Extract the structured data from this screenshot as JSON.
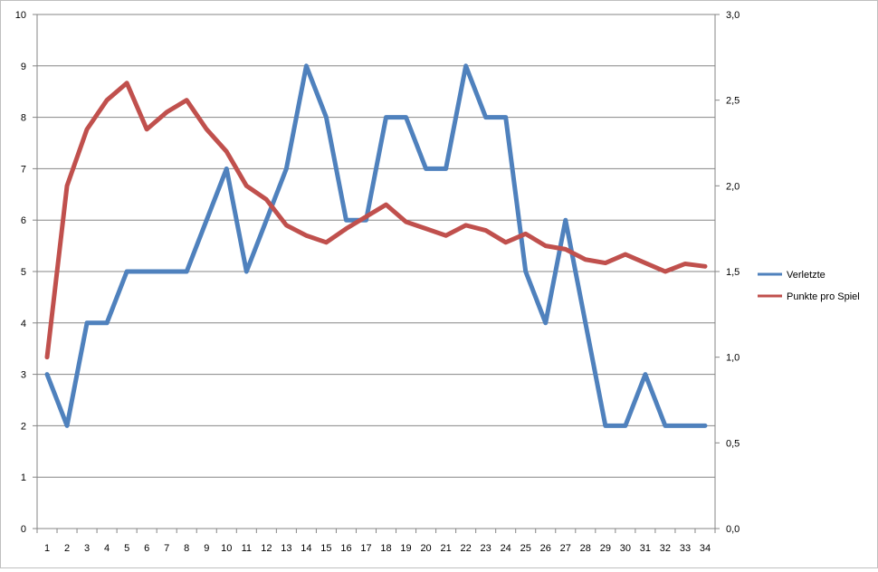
{
  "chart_data": {
    "type": "line",
    "title": "",
    "xlabel": "",
    "ylabel": "",
    "y2label": "",
    "categories": [
      "1",
      "2",
      "3",
      "4",
      "5",
      "6",
      "7",
      "8",
      "9",
      "10",
      "11",
      "12",
      "13",
      "14",
      "15",
      "16",
      "17",
      "18",
      "19",
      "20",
      "21",
      "22",
      "23",
      "24",
      "25",
      "26",
      "27",
      "28",
      "29",
      "30",
      "31",
      "32",
      "33",
      "34"
    ],
    "ylim": [
      0,
      10
    ],
    "yticks": [
      "0",
      "1",
      "2",
      "3",
      "4",
      "5",
      "6",
      "7",
      "8",
      "9",
      "10"
    ],
    "y2lim": [
      0,
      3
    ],
    "y2ticks": [
      "0,0",
      "0,5",
      "1,0",
      "1,5",
      "2,0",
      "2,5",
      "3,0"
    ],
    "grid": true,
    "legend_position": "right",
    "series": [
      {
        "name": "Verletzte",
        "axis": "left",
        "color": "#4f81bd",
        "values": [
          3,
          2,
          4,
          4,
          5,
          5,
          5,
          5,
          6,
          7,
          5,
          6,
          7,
          9,
          8,
          6,
          6,
          8,
          8,
          7,
          7,
          9,
          8,
          8,
          5,
          4,
          6,
          4,
          2,
          2,
          3,
          2,
          2,
          2
        ]
      },
      {
        "name": "Punkte pro Spiel",
        "axis": "right",
        "color": "#c0504d",
        "values": [
          1.0,
          2.0,
          2.33,
          2.5,
          2.6,
          2.33,
          2.43,
          2.5,
          2.33,
          2.2,
          2.0,
          1.92,
          1.77,
          1.71,
          1.67,
          1.75,
          1.82,
          1.89,
          1.79,
          1.75,
          1.71,
          1.77,
          1.74,
          1.67,
          1.72,
          1.65,
          1.63,
          1.57,
          1.55,
          1.6,
          1.55,
          1.5,
          1.545,
          1.53
        ]
      }
    ]
  }
}
